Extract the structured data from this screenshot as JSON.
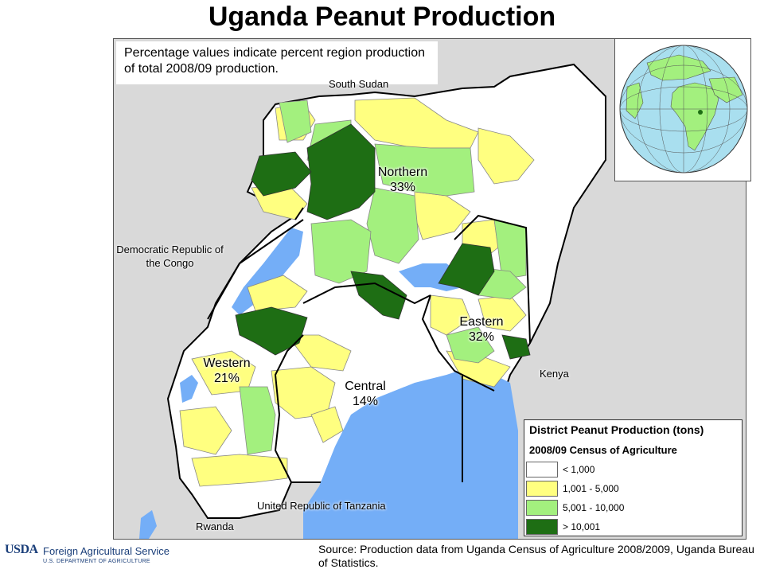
{
  "title": "Uganda Peanut Production",
  "note": "Percentage values indicate percent region production of total 2008/09 production.",
  "neighbors": {
    "south_sudan": "South Sudan",
    "drc": "Democratic Republic of the Congo",
    "kenya": "Kenya",
    "tanzania": "United Republic of Tanzania",
    "rwanda": "Rwanda"
  },
  "regions": [
    {
      "name": "Northern",
      "percent": "33%"
    },
    {
      "name": "Eastern",
      "percent": "32%"
    },
    {
      "name": "Western",
      "percent": "21%"
    },
    {
      "name": "Central",
      "percent": "14%"
    }
  ],
  "legend": {
    "title": "District Peanut Production (tons)",
    "subtitle": "2008/09 Census of Agriculture",
    "classes": [
      {
        "label": "< 1,000",
        "color": "#ffffff"
      },
      {
        "label": "1,001 - 5,000",
        "color": "#ffff80"
      },
      {
        "label": "5,001 - 10,000",
        "color": "#a3f07e"
      },
      {
        "label": "> 10,001",
        "color": "#1e6e14"
      }
    ]
  },
  "colors": {
    "water": "#74aef7",
    "land_outside": "#d9d9d9",
    "border": "#000000"
  },
  "source": "Source: Production data from Uganda Census of Agriculture 2008/2009, Uganda Bureau of Statistics.",
  "agency": {
    "mark": "USDA",
    "name": "Foreign Agricultural Service",
    "dept": "U.S. DEPARTMENT OF AGRICULTURE"
  }
}
